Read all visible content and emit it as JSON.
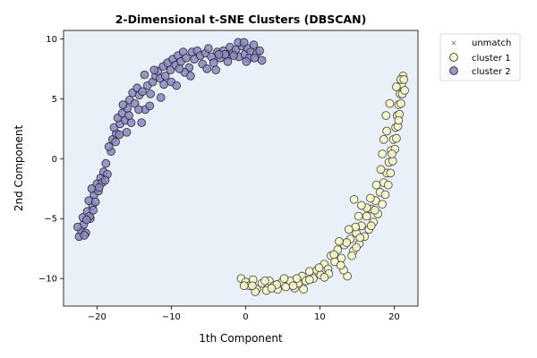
{
  "chart_data": {
    "type": "scatter",
    "title": "2-Dimensional t-SNE Clusters (DBSCAN)",
    "xlabel": "1th Component",
    "ylabel": "2nd Component",
    "xlim": [
      -24.5,
      23.2
    ],
    "ylim": [
      -12.3,
      10.7
    ],
    "xticks": [
      -20,
      -10,
      0,
      10,
      20
    ],
    "yticks": [
      -10,
      -5,
      0,
      5,
      10
    ],
    "xtick_labels": [
      "−20",
      "−10",
      "0",
      "10",
      "20"
    ],
    "ytick_labels": [
      "−10",
      "−5",
      "0",
      "5",
      "10"
    ],
    "grid": false,
    "plot_background": "#e9f0f7",
    "legend_position": "outside-right",
    "series": [
      {
        "name": "unmatch",
        "marker": "x",
        "color": "#8a8a8a",
        "points": [
          [
            -13.8,
            6.8
          ],
          [
            2.5,
            8.3
          ]
        ]
      },
      {
        "name": "cluster 1",
        "marker": "circle",
        "color": "#fafac8",
        "edge": "#333333",
        "points": [
          [
            -0.6,
            -10.0
          ],
          [
            0.0,
            -10.3
          ],
          [
            0.5,
            -10.6
          ],
          [
            1.0,
            -10.1
          ],
          [
            1.5,
            -10.9
          ],
          [
            2.2,
            -10.4
          ],
          [
            2.8,
            -11.0
          ],
          [
            3.2,
            -10.2
          ],
          [
            3.8,
            -10.6
          ],
          [
            4.3,
            -10.9
          ],
          [
            4.9,
            -10.3
          ],
          [
            5.4,
            -10.7
          ],
          [
            6.0,
            -10.2
          ],
          [
            6.6,
            -10.8
          ],
          [
            7.1,
            -10.4
          ],
          [
            7.6,
            -9.8
          ],
          [
            8.1,
            -10.2
          ],
          [
            8.6,
            -9.4
          ],
          [
            9.1,
            -10.0
          ],
          [
            9.6,
            -9.3
          ],
          [
            10.1,
            -9.7
          ],
          [
            10.6,
            -8.8
          ],
          [
            11.1,
            -9.2
          ],
          [
            11.5,
            -8.1
          ],
          [
            12.0,
            -8.6
          ],
          [
            12.4,
            -7.6
          ],
          [
            12.9,
            -8.3
          ],
          [
            13.3,
            -7.2
          ],
          [
            13.7,
            -9.8
          ],
          [
            14.1,
            -6.7
          ],
          [
            14.5,
            -7.7
          ],
          [
            14.9,
            -6.2
          ],
          [
            15.3,
            -7.1
          ],
          [
            15.6,
            -5.6
          ],
          [
            16.0,
            -6.5
          ],
          [
            16.3,
            -4.8
          ],
          [
            16.6,
            -5.9
          ],
          [
            16.9,
            -4.2
          ],
          [
            17.2,
            -5.3
          ],
          [
            17.5,
            -3.5
          ],
          [
            17.8,
            -4.6
          ],
          [
            18.1,
            -2.8
          ],
          [
            18.4,
            -3.8
          ],
          [
            18.6,
            -2.0
          ],
          [
            18.8,
            -3.0
          ],
          [
            19.0,
            -1.2
          ],
          [
            19.2,
            -2.2
          ],
          [
            19.3,
            -0.3
          ],
          [
            19.5,
            -1.2
          ],
          [
            19.6,
            0.7
          ],
          [
            19.8,
            -0.2
          ],
          [
            19.9,
            1.6
          ],
          [
            20.1,
            0.8
          ],
          [
            20.2,
            2.6
          ],
          [
            20.3,
            1.7
          ],
          [
            20.4,
            3.6
          ],
          [
            20.5,
            2.7
          ],
          [
            20.6,
            4.5
          ],
          [
            20.7,
            3.7
          ],
          [
            20.8,
            5.4
          ],
          [
            20.9,
            4.6
          ],
          [
            21.0,
            6.2
          ],
          [
            21.1,
            5.4
          ],
          [
            21.2,
            6.9
          ],
          [
            20.9,
            6.6
          ],
          [
            21.4,
            5.7
          ],
          [
            19.4,
            4.6
          ],
          [
            18.9,
            3.6
          ],
          [
            19.0,
            2.3
          ],
          [
            18.6,
            1.6
          ],
          [
            18.4,
            0.4
          ],
          [
            18.2,
            -0.9
          ],
          [
            17.6,
            -2.2
          ],
          [
            16.8,
            -3.3
          ],
          [
            16.3,
            -4.1
          ],
          [
            15.6,
            -3.9
          ],
          [
            15.2,
            -4.8
          ],
          [
            14.8,
            -5.7
          ],
          [
            14.6,
            -3.4
          ],
          [
            13.9,
            -5.9
          ],
          [
            13.6,
            -7.0
          ],
          [
            12.6,
            -6.9
          ],
          [
            11.9,
            -8.0
          ],
          [
            13.2,
            -9.3
          ],
          [
            1.3,
            -11.1
          ],
          [
            2.6,
            -10.2
          ],
          [
            4.2,
            -10.5
          ],
          [
            6.4,
            -10.6
          ],
          [
            7.8,
            -10.9
          ],
          [
            8.6,
            -10.1
          ],
          [
            9.9,
            -9.1
          ],
          [
            11.2,
            -9.6
          ],
          [
            12.8,
            -8.9
          ],
          [
            14.3,
            -8.1
          ],
          [
            15.4,
            -6.6
          ],
          [
            16.9,
            -5.6
          ],
          [
            -0.2,
            -10.6
          ],
          [
            0.9,
            -10.6
          ],
          [
            3.5,
            -10.8
          ],
          [
            5.2,
            -10.0
          ],
          [
            6.9,
            -10.0
          ],
          [
            10.6,
            -9.9
          ],
          [
            14.9,
            -7.4
          ],
          [
            17.4,
            -4.3
          ],
          [
            19.7,
            0.4
          ],
          [
            20.6,
            3.2
          ],
          [
            21.3,
            6.6
          ],
          [
            20.3,
            6.0
          ]
        ]
      },
      {
        "name": "cluster 2",
        "marker": "circle",
        "color": "#8887c3",
        "edge": "#222222",
        "points": [
          [
            -22.4,
            -6.5
          ],
          [
            -22.1,
            -6.0
          ],
          [
            -21.8,
            -5.5
          ],
          [
            -21.5,
            -6.2
          ],
          [
            -21.9,
            -4.9
          ],
          [
            -21.3,
            -4.4
          ],
          [
            -20.9,
            -5.0
          ],
          [
            -20.6,
            -3.9
          ],
          [
            -21.1,
            -3.5
          ],
          [
            -20.4,
            -3.0
          ],
          [
            -20.7,
            -2.5
          ],
          [
            -20.0,
            -2.1
          ],
          [
            -19.8,
            -2.7
          ],
          [
            -19.5,
            -1.6
          ],
          [
            -19.1,
            -1.1
          ],
          [
            -18.8,
            -0.4
          ],
          [
            -18.1,
            0.6
          ],
          [
            -18.4,
            1.0
          ],
          [
            -17.9,
            1.6
          ],
          [
            -17.4,
            2.1
          ],
          [
            -17.7,
            2.6
          ],
          [
            -16.9,
            2.9
          ],
          [
            -17.2,
            3.4
          ],
          [
            -16.6,
            3.8
          ],
          [
            -16.2,
            3.2
          ],
          [
            -15.9,
            4.2
          ],
          [
            -16.5,
            4.5
          ],
          [
            -15.6,
            4.9
          ],
          [
            -15.2,
            5.5
          ],
          [
            -14.9,
            4.6
          ],
          [
            -14.6,
            5.9
          ],
          [
            -14.3,
            5.3
          ],
          [
            -13.9,
            5.6
          ],
          [
            -13.5,
            4.1
          ],
          [
            -13.2,
            6.1
          ],
          [
            -12.8,
            5.4
          ],
          [
            -12.5,
            6.4
          ],
          [
            -12.1,
            6.9
          ],
          [
            -11.8,
            7.3
          ],
          [
            -11.5,
            6.7
          ],
          [
            -11.1,
            7.7
          ],
          [
            -10.8,
            6.9
          ],
          [
            -10.5,
            8.0
          ],
          [
            -10.1,
            7.4
          ],
          [
            -9.8,
            8.3
          ],
          [
            -9.4,
            7.8
          ],
          [
            -9.1,
            8.6
          ],
          [
            -8.7,
            8.1
          ],
          [
            -8.4,
            8.9
          ],
          [
            -8.0,
            8.4
          ],
          [
            -7.6,
            7.6
          ],
          [
            -7.2,
            8.9
          ],
          [
            -6.9,
            8.3
          ],
          [
            -6.5,
            9.0
          ],
          [
            -6.1,
            8.6
          ],
          [
            -5.8,
            7.9
          ],
          [
            -5.4,
            8.8
          ],
          [
            -5.0,
            9.2
          ],
          [
            -4.6,
            8.5
          ],
          [
            -4.3,
            8.0
          ],
          [
            -3.8,
            8.9
          ],
          [
            -3.4,
            8.4
          ],
          [
            -3.0,
            9.0
          ],
          [
            -2.5,
            8.6
          ],
          [
            -2.1,
            9.3
          ],
          [
            -1.7,
            8.8
          ],
          [
            -1.3,
            9.1
          ],
          [
            -0.9,
            8.5
          ],
          [
            -0.5,
            9.4
          ],
          [
            -0.1,
            8.7
          ],
          [
            0.3,
            9.2
          ],
          [
            0.7,
            8.9
          ],
          [
            1.1,
            9.5
          ],
          [
            1.5,
            8.8
          ],
          [
            1.9,
            9.0
          ],
          [
            2.2,
            8.2
          ],
          [
            0.5,
            8.4
          ],
          [
            -1.0,
            9.7
          ],
          [
            -0.2,
            9.7
          ],
          [
            -2.8,
            8.7
          ],
          [
            -3.6,
            8.7
          ],
          [
            -21.0,
            -4.8
          ],
          [
            -22.6,
            -5.7
          ],
          [
            -21.7,
            -6.4
          ],
          [
            -20.2,
            -3.6
          ],
          [
            -19.3,
            -2.0
          ],
          [
            -18.6,
            -1.3
          ],
          [
            -17.5,
            1.4
          ],
          [
            -16.0,
            2.2
          ],
          [
            -15.4,
            3.0
          ],
          [
            -14.4,
            4.1
          ],
          [
            -14.0,
            3.0
          ],
          [
            -12.9,
            4.4
          ],
          [
            -12.3,
            7.4
          ],
          [
            -11.0,
            6.2
          ],
          [
            -10.0,
            6.4
          ],
          [
            -9.3,
            6.1
          ],
          [
            -8.2,
            7.2
          ],
          [
            -7.4,
            6.9
          ],
          [
            -5.2,
            7.5
          ],
          [
            -4.0,
            7.4
          ],
          [
            -2.4,
            8.1
          ],
          [
            -1.6,
            8.6
          ],
          [
            0.1,
            8.1
          ],
          [
            1.2,
            8.4
          ],
          [
            -11.4,
            5.1
          ],
          [
            -13.6,
            7.0
          ],
          [
            -15.7,
            3.6
          ],
          [
            -18.9,
            -1.8
          ],
          [
            -20.5,
            -4.3
          ],
          [
            -21.4,
            -5.1
          ],
          [
            -19.7,
            -2.4
          ],
          [
            -17.0,
            2.0
          ],
          [
            -8.9,
            7.5
          ]
        ]
      }
    ]
  }
}
